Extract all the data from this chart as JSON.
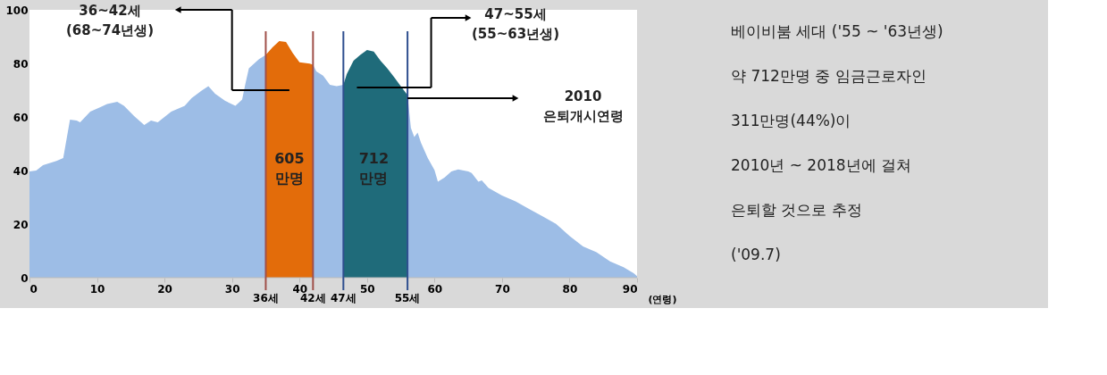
{
  "chart_data": [
    {
      "type": "area",
      "xlabel": "(연령)",
      "xlim": [
        0,
        90
      ],
      "xticks": [
        0,
        10,
        20,
        30,
        40,
        50,
        60,
        70,
        80,
        90
      ],
      "ylim": [
        0,
        100
      ],
      "yticks": [
        0,
        20,
        40,
        60,
        80,
        100
      ],
      "series": [
        {
          "color": "#9dbde6",
          "x": [
            0,
            1,
            2,
            4,
            5,
            6,
            7,
            7.5,
            9,
            10.5,
            11.5,
            13,
            14,
            15.5,
            17,
            18,
            19,
            21,
            23,
            24,
            25.5,
            26.5,
            27.5,
            29,
            30.5,
            31.5,
            32,
            32.5,
            34,
            35,
            36,
            37,
            38,
            39,
            40,
            42,
            42.5,
            43.5,
            44.5,
            45.5,
            46.5,
            47,
            48,
            49,
            50,
            51,
            52,
            53,
            54,
            55,
            56,
            56.5,
            57,
            57.5,
            58,
            59,
            60,
            60.5,
            61.5,
            62.5,
            63.5,
            65,
            65.5,
            66.5,
            67,
            68,
            70,
            72,
            74,
            76,
            78,
            80,
            82,
            84,
            86,
            88,
            89.5,
            90
          ],
          "values": [
            39.7,
            40,
            42,
            43.6,
            44.7,
            59,
            58.7,
            58,
            62,
            63.7,
            64.8,
            65.7,
            64.2,
            60.3,
            57,
            58.7,
            58,
            62,
            64.2,
            67,
            69.8,
            71.5,
            68.7,
            66,
            64.2,
            66.5,
            72.6,
            78.2,
            81.6,
            83.2,
            null,
            null,
            null,
            null,
            null,
            79.5,
            77,
            75.4,
            72,
            71.5,
            72,
            null,
            null,
            null,
            null,
            null,
            null,
            null,
            null,
            null,
            68.2,
            55.9,
            52.5,
            54.2,
            50.3,
            44.7,
            40.2,
            35.8,
            37.4,
            39.7,
            40.4,
            39.7,
            39.1,
            35.8,
            36.3,
            33.5,
            30.7,
            28.5,
            25.7,
            22.9,
            20.1,
            15.6,
            11.7,
            9.5,
            6.1,
            3.9,
            1.7,
            0.6
          ]
        },
        {
          "color": "#e36c0a",
          "x": [
            35,
            36,
            37,
            38,
            39,
            40,
            41.5,
            42
          ],
          "values": [
            83.2,
            86,
            88.3,
            88,
            83.8,
            80.4,
            79.9,
            79.5
          ]
        },
        {
          "color": "#1f6b7a",
          "x": [
            46.5,
            47,
            48,
            49,
            50,
            51,
            52,
            53,
            54,
            55,
            56
          ],
          "values": [
            72,
            76,
            81,
            83.2,
            85,
            84.4,
            81,
            78.2,
            74.9,
            71.5,
            68.2
          ]
        }
      ],
      "ref_lines": [
        {
          "axis": "x",
          "value": 35,
          "label": "36세",
          "color": "#a0504a"
        },
        {
          "axis": "x",
          "value": 42,
          "label": "42세",
          "color": "#a0504a"
        },
        {
          "axis": "x",
          "value": 46.5,
          "label": "47세",
          "color": "#2f4f8f"
        },
        {
          "axis": "x",
          "value": 56,
          "label": "55세",
          "color": "#2f4f8f"
        }
      ],
      "annotations": [
        "36~42세\n(68~74년생)",
        "47~55세\n(55~63년생)",
        "2010\n은퇴개시연령",
        "605\n만명",
        "712\n만명"
      ]
    },
    {
      "type": "other",
      "annotations": [
        "베이비붐 세대 ('55 ~ '63년생)",
        "약 712만명 중 임금근로자인",
        "311만명(44%)이",
        "2010년 ~ 2018년에 걸쳐",
        "은퇴할 것으로 추정",
        "('09.7)"
      ]
    }
  ]
}
